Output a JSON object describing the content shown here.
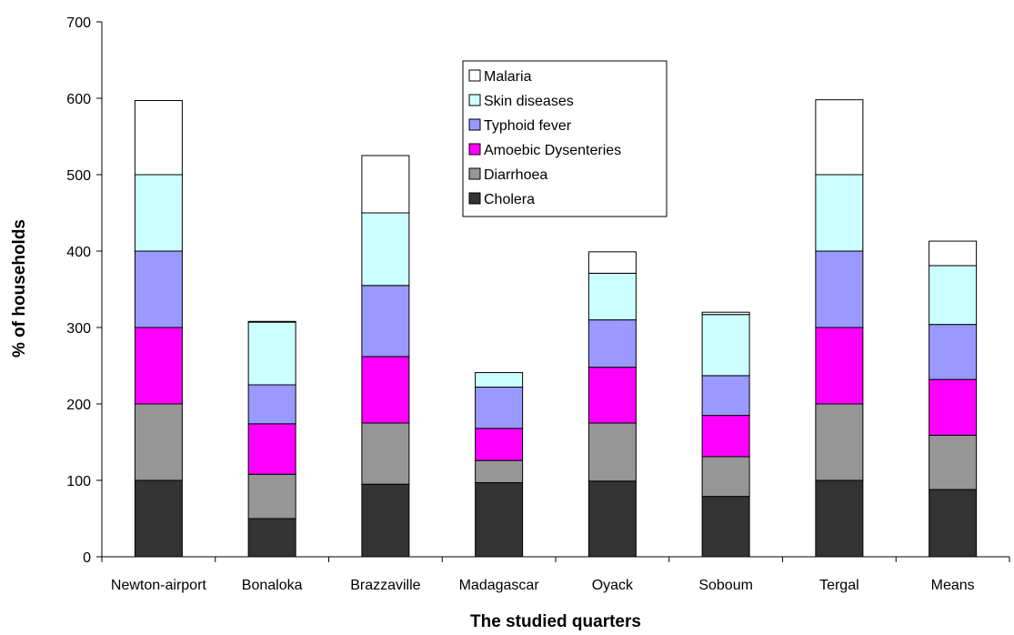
{
  "chart_data": {
    "type": "bar",
    "stacked": true,
    "title": "",
    "xlabel": "The studied quarters",
    "ylabel": "% of households",
    "ylim": [
      0,
      700
    ],
    "yticks": [
      0,
      100,
      200,
      300,
      400,
      500,
      600,
      700
    ],
    "grid": false,
    "legend_position": "top-center",
    "categories": [
      "Newton-airport",
      "Bonaloka",
      "Brazzaville",
      "Madagascar",
      "Oyack",
      "Soboum",
      "Tergal",
      "Means"
    ],
    "series": [
      {
        "name": "Cholera",
        "color": "#333333",
        "values": [
          100,
          50,
          95,
          97,
          99,
          79,
          100,
          88
        ]
      },
      {
        "name": "Diarrhoea",
        "color": "#969696",
        "values": [
          100,
          58,
          80,
          29,
          76,
          52,
          100,
          71
        ]
      },
      {
        "name": "Amoebic Dysenteries",
        "color": "#ff00ff",
        "values": [
          100,
          66,
          87,
          42,
          73,
          54,
          100,
          73
        ]
      },
      {
        "name": "Typhoid fever",
        "color": "#9999ff",
        "values": [
          100,
          51,
          93,
          54,
          62,
          52,
          100,
          72
        ]
      },
      {
        "name": "Skin diseases",
        "color": "#ccffff",
        "values": [
          100,
          82,
          95,
          19,
          61,
          80,
          100,
          77
        ]
      },
      {
        "name": "Malaria",
        "color": "#ffffff",
        "values": [
          97,
          1,
          75,
          0,
          28,
          3,
          98,
          32
        ]
      }
    ]
  }
}
